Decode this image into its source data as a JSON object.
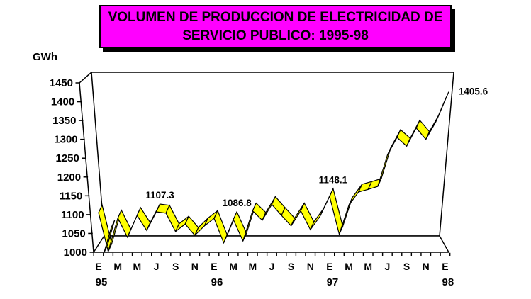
{
  "title": {
    "line1": "VOLUMEN DE PRODUCCION DE ELECTRICIDAD DE",
    "line2": "SERVICIO PUBLICO: 1995-98"
  },
  "unit_label": "GWh",
  "colors": {
    "title_bg": "#FF00FF",
    "ribbon": "#FFFF00",
    "ribbon_side": "#808000",
    "line": "#000000",
    "background": "#FFFFFF"
  },
  "chart_data": {
    "type": "line",
    "style": "3d-ribbon",
    "title": "VOLUMEN DE PRODUCCION DE ELECTRICIDAD DE SERVICIO PUBLICO: 1995-98",
    "ylabel": "GWh",
    "ylim": [
      1000,
      1450
    ],
    "y_ticks": [
      1000,
      1050,
      1100,
      1150,
      1200,
      1250,
      1300,
      1350,
      1400,
      1450
    ],
    "grid": false,
    "legend": false,
    "x_months_span": "Ene 1995 - Ene 1998",
    "x_tick_labels": [
      "E",
      "M",
      "M",
      "J",
      "S",
      "N",
      "E",
      "M",
      "M",
      "J",
      "S",
      "N",
      "E",
      "M",
      "M",
      "J",
      "S",
      "N",
      "E"
    ],
    "x_tick_label_month_indices": [
      0,
      2,
      4,
      6,
      8,
      10,
      12,
      14,
      16,
      18,
      20,
      22,
      24,
      26,
      28,
      30,
      32,
      34,
      36
    ],
    "year_labels": [
      {
        "text": "95",
        "month_index": 0
      },
      {
        "text": "96",
        "month_index": 12
      },
      {
        "text": "97",
        "month_index": 24
      },
      {
        "text": "98",
        "month_index": 36
      }
    ],
    "values": [
      1105,
      1002,
      1091,
      1040,
      1098,
      1058,
      1107.3,
      1104,
      1055,
      1075,
      1045,
      1070,
      1090,
      1025,
      1086.8,
      1030,
      1110,
      1085,
      1127,
      1098,
      1070,
      1110,
      1060,
      1095,
      1148.1,
      1048,
      1125,
      1160,
      1167,
      1175,
      1258,
      1305,
      1282,
      1330,
      1300,
      1345,
      1405.6
    ],
    "point_labels": [
      {
        "index": 6,
        "text": "1107.3"
      },
      {
        "index": 14,
        "text": "1086.8"
      },
      {
        "index": 24,
        "text": "1148.1"
      },
      {
        "index": 36,
        "text": "1405.6"
      }
    ]
  }
}
